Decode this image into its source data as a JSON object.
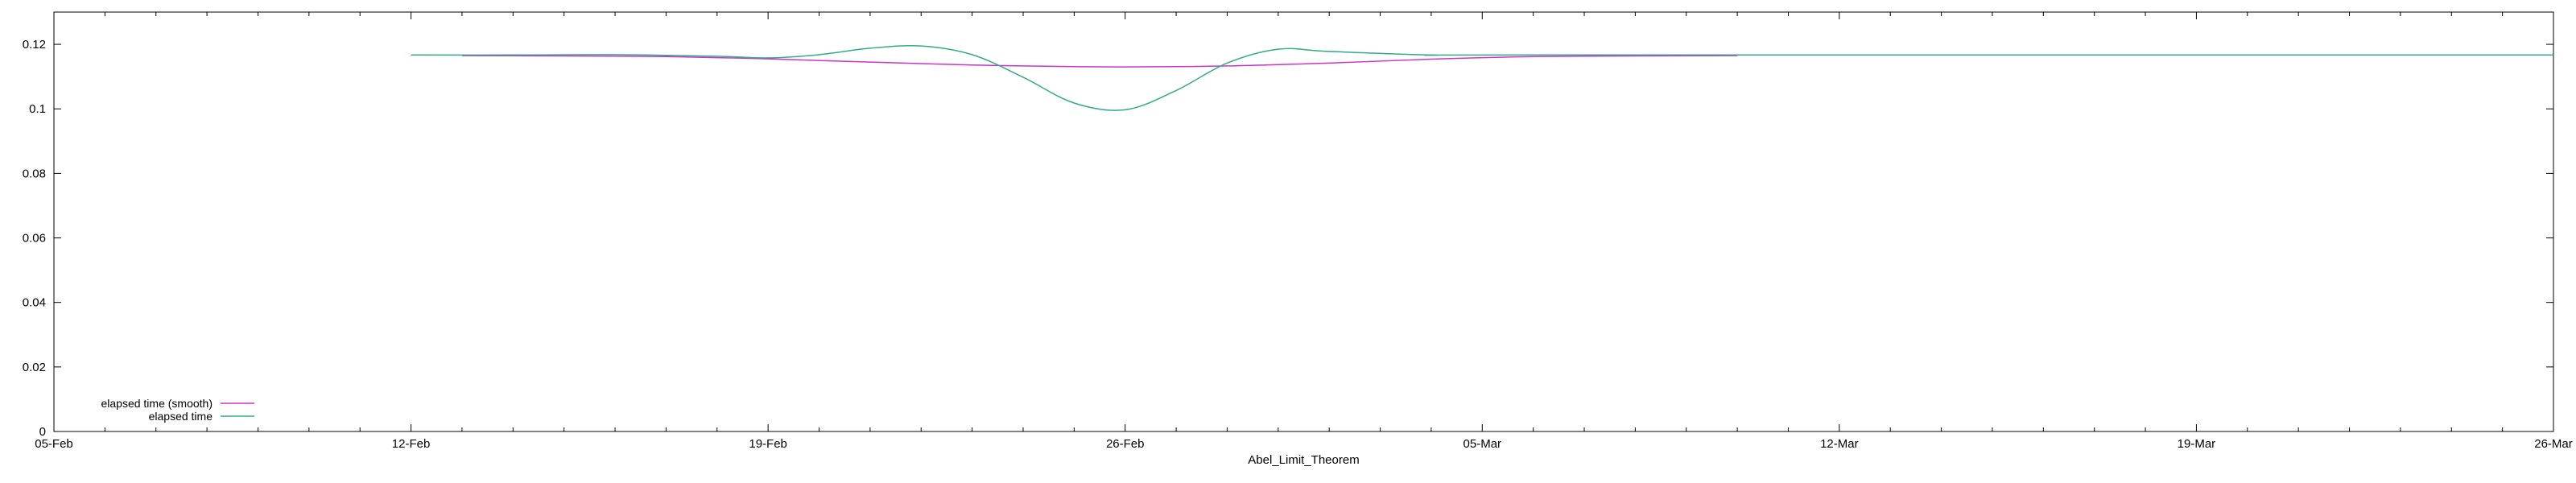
{
  "chart_data": {
    "type": "line",
    "title": "",
    "xlabel": "Abel_Limit_Theorem",
    "ylabel": "",
    "x_type": "date",
    "xlim": [
      "2015-02-05",
      "2015-03-26"
    ],
    "ylim": [
      0,
      0.13
    ],
    "x_ticks": [
      "05-Feb",
      "12-Feb",
      "19-Feb",
      "26-Feb",
      "05-Mar",
      "12-Mar",
      "19-Mar",
      "26-Mar"
    ],
    "y_ticks": [
      "0",
      "0.02",
      "0.04",
      "0.06",
      "0.08",
      "0.1",
      "0.12"
    ],
    "grid": false,
    "legend_position": "bottom-left",
    "series": [
      {
        "name": "elapsed time (smooth)",
        "color": "#cc33cc",
        "x": [
          "2015-02-13",
          "2015-02-15",
          "2015-02-17",
          "2015-02-19",
          "2015-02-21",
          "2015-02-23",
          "2015-02-25",
          "2015-02-26",
          "2015-02-28",
          "2015-03-02",
          "2015-03-04",
          "2015-03-06",
          "2015-03-08",
          "2015-03-10"
        ],
        "y": [
          0.1165,
          0.1164,
          0.1162,
          0.1155,
          0.1145,
          0.1136,
          0.1131,
          0.113,
          0.1133,
          0.1142,
          0.1154,
          0.1162,
          0.1164,
          0.1165
        ]
      },
      {
        "name": "elapsed time",
        "color": "#33aa88",
        "x": [
          "2015-02-12",
          "2015-02-14",
          "2015-02-16",
          "2015-02-18",
          "2015-02-19",
          "2015-02-20",
          "2015-02-21",
          "2015-02-22",
          "2015-02-23",
          "2015-02-24",
          "2015-02-25",
          "2015-02-26",
          "2015-02-27",
          "2015-02-28",
          "2015-03-01",
          "2015-03-02",
          "2015-03-04",
          "2015-03-06",
          "2015-03-26"
        ],
        "y": [
          0.1167,
          0.1167,
          0.1168,
          0.1163,
          0.1158,
          0.1168,
          0.1188,
          0.1195,
          0.1168,
          0.1098,
          0.1018,
          0.0997,
          0.1057,
          0.1142,
          0.1185,
          0.1178,
          0.1167,
          0.1167,
          0.1167
        ]
      }
    ]
  }
}
